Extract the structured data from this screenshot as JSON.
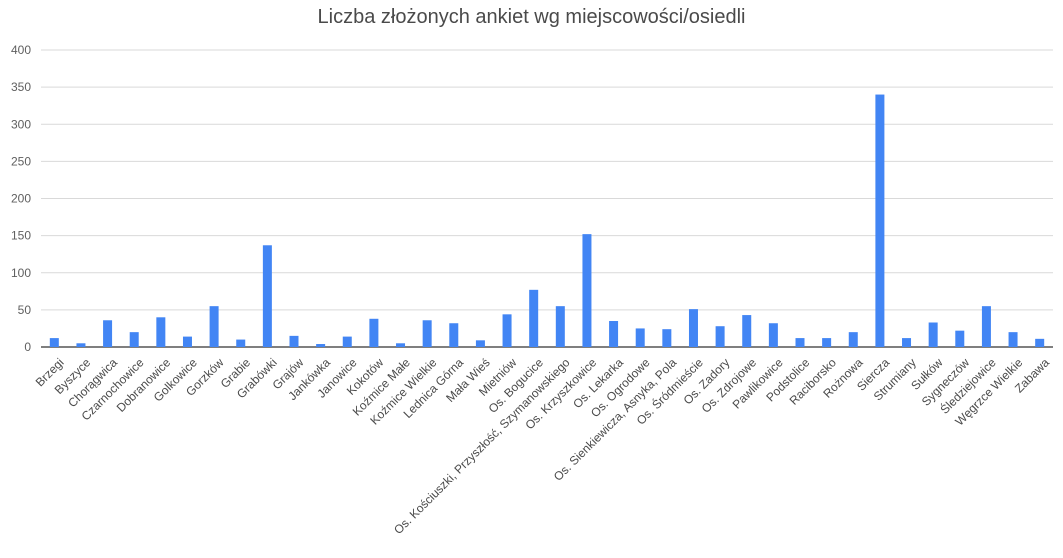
{
  "chart_data": {
    "type": "bar",
    "title": "Liczba złożonych ankiet wg miejscowości/osiedli",
    "xlabel": "",
    "ylabel": "",
    "ylim": [
      0,
      400
    ],
    "yticks": [
      "0",
      "50",
      "100",
      "150",
      "200",
      "250",
      "300",
      "350",
      "400"
    ],
    "grid": true,
    "legend": "none",
    "bar_color": "#4285f4",
    "grid_color": "#d9d9d9",
    "categories": [
      "Brzegi",
      "Byszyce",
      "Chorągwica",
      "Czarnochowice",
      "Dobranowice",
      "Golkowice",
      "Gorzków",
      "Grabie",
      "Grabówki",
      "Grajów",
      "Jankówka",
      "Janowice",
      "Kokotów",
      "Koźmice Małe",
      "Koźmice Wielkie",
      "Lednica Górna",
      "Mała Wieś",
      "Mietniów",
      "Os. Bogucice",
      "Os. Kościuszki, Przyszłość, Szymanowskiego",
      "Os. Krzyszkowice",
      "Os. Lekarka",
      "Os. Ogrodowe",
      "Os. Sienkiewicza, Asnyka, Pola",
      "Os. Śródmieście",
      "Os. Zadory",
      "Os. Zdrojowe",
      "Pawlikowice",
      "Podstolice",
      "Raciborsko",
      "Rożnowa",
      "Siercza",
      "Strumiany",
      "Sułków",
      "Sygneczów",
      "Śledziejowice",
      "Węgrzce Wielkie",
      "Zabawa"
    ],
    "values": [
      12,
      5,
      36,
      20,
      40,
      14,
      55,
      10,
      137,
      15,
      4,
      14,
      38,
      5,
      36,
      32,
      9,
      44,
      77,
      55,
      152,
      35,
      25,
      24,
      51,
      28,
      43,
      32,
      12,
      12,
      20,
      340,
      12,
      33,
      22,
      55,
      20,
      11
    ]
  }
}
